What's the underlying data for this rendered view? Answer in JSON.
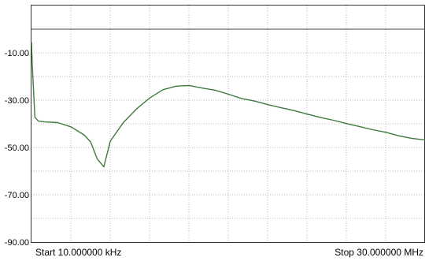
{
  "chart_data": {
    "type": "line",
    "title": "",
    "xlabel": "",
    "ylabel": "",
    "x_unit": "Hz",
    "xlim": [
      10000,
      30000000
    ],
    "ylim": [
      -90,
      10
    ],
    "grid": true,
    "y_ticks": [
      {
        "value": -10,
        "label": "-10.00"
      },
      {
        "value": -30,
        "label": "-30.00"
      },
      {
        "value": -50,
        "label": "-50.00"
      },
      {
        "value": -70,
        "label": "-70.00"
      },
      {
        "value": -90,
        "label": "-90.00"
      }
    ],
    "start_label": "Start 10.000000 kHz",
    "stop_label": "Stop 30.000000 MHz",
    "reference_level": 0,
    "trace_color": "#3f7a3f",
    "reference_color": "#444444",
    "grid_color": "#b8b8b8",
    "series": [
      {
        "x": [
          10000,
          70000,
          270000,
          520000,
          1020000,
          2020000,
          3020000,
          4020000,
          4520000,
          5020000,
          5520000,
          6020000,
          7020000,
          8020000,
          9020000,
          10020000,
          11020000,
          12020000,
          13020000,
          14020000,
          15020000,
          16020000,
          17020000,
          18020000,
          19020000,
          20020000,
          21020000,
          22020000,
          23020000,
          24020000,
          25020000,
          26020000,
          27020000,
          28020000,
          29020000,
          30000000
        ],
        "y": [
          -5.5,
          -15,
          -37.2,
          -38.8,
          -39.2,
          -39.5,
          -41.3,
          -44.7,
          -47.7,
          -54.8,
          -58.2,
          -47.3,
          -39.4,
          -33.7,
          -29.1,
          -25.6,
          -24.1,
          -23.8,
          -24.9,
          -25.8,
          -27.5,
          -29.3,
          -30.4,
          -31.9,
          -33.2,
          -34.4,
          -35.9,
          -37.3,
          -38.5,
          -39.9,
          -41.2,
          -42.5,
          -43.6,
          -45.1,
          -46.2,
          -46.8
        ]
      }
    ]
  }
}
